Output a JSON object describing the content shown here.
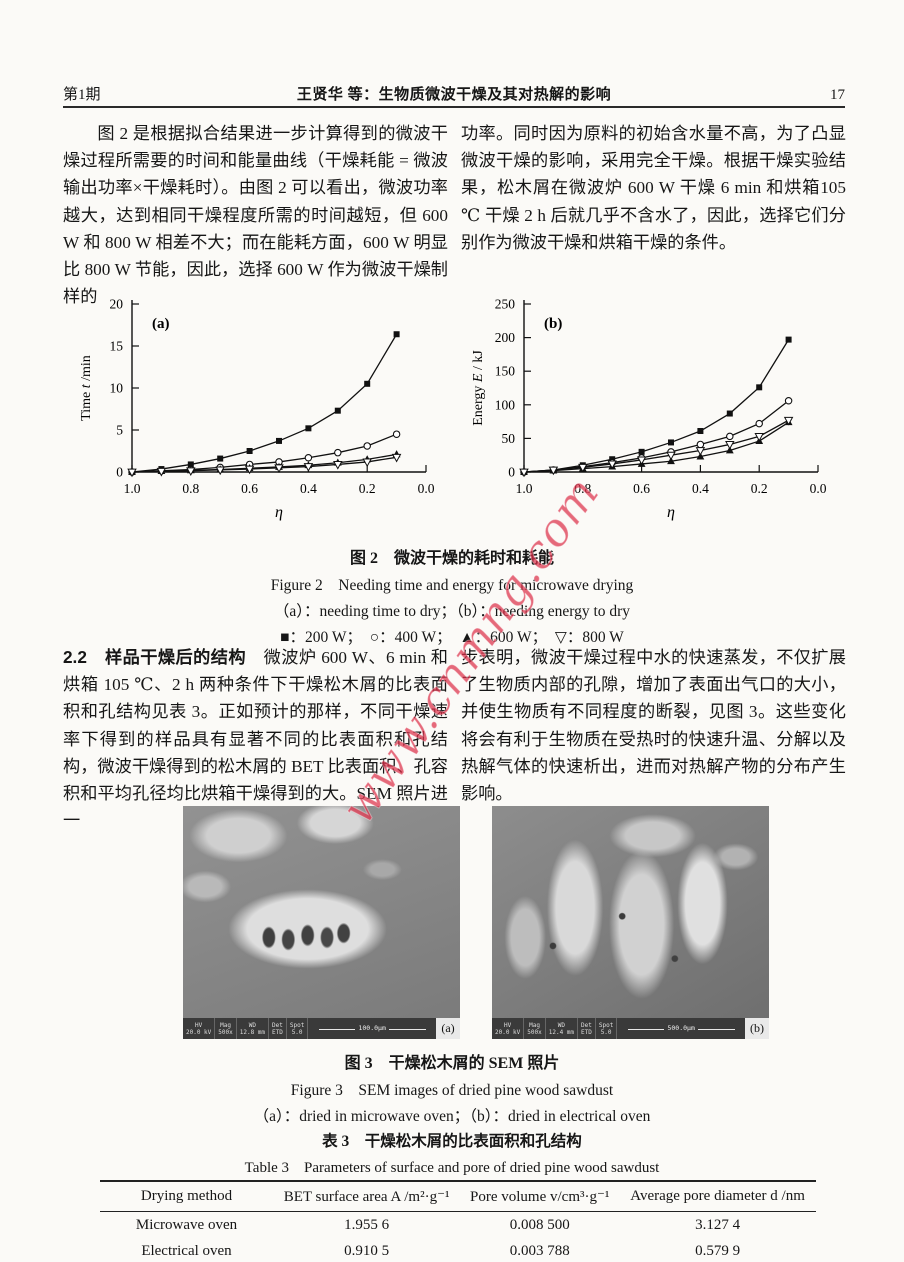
{
  "page": {
    "issue": "第1期",
    "header_title": "王贤华 等：生物质微波干燥及其对热解的影响",
    "page_number": "17"
  },
  "watermark": "www.cnmng.com",
  "intro": {
    "left": "图 2 是根据拟合结果进一步计算得到的微波干燥过程所需要的时间和能量曲线（干燥耗能 = 微波输出功率×干燥耗时）。由图 2 可以看出，微波功率越大，达到相同干燥程度所需的时间越短，但 600 W 和 800 W 相差不大；而在能耗方面，600 W 明显比 800 W 节能，因此，选择 600 W 作为微波干燥制样的",
    "right": "功率。同时因为原料的初始含水量不高，为了凸显微波干燥的影响，采用完全干燥。根据干燥实验结果，松木屑在微波炉 600 W 干燥 6 min 和烘箱105 ℃ 干燥 2 h 后就几乎不含水了，因此，选择它们分别作为微波干燥和烘箱干燥的条件。"
  },
  "figure2": {
    "caption_zh": "图 2　微波干燥的耗时和耗能",
    "caption_en": "Figure 2　Needing time and energy for microwave drying",
    "caption_sub": "（a）：needing time to dry；（b）：needing energy to dry",
    "legend": "■：200 W；　○：400 W；　▲：600 W；　▽：800 W"
  },
  "section22": {
    "heading": "2.2　样品干燥后的结构　",
    "left": "微波炉 600 W、6 min 和烘箱 105 ℃、2 h 两种条件下干燥松木屑的比表面积和孔结构见表 3。正如预计的那样，不同干燥速率下得到的样品具有显著不同的比表面积和孔结构，微波干燥得到的松木屑的 BET 比表面积、孔容积和平均孔径均比烘箱干燥得到的大。SEM 照片进一",
    "right": "步表明，微波干燥过程中水的快速蒸发，不仅扩展了生物质内部的孔隙，增加了表面出气口的大小，并使生物质有不同程度的断裂，见图 3。这些变化将会有利于生物质在受热时的快速升温、分解以及热解气体的快速析出，进而对热解产物的分布产生影响。"
  },
  "sem": {
    "a": {
      "columns": [
        [
          "HV",
          "20.0 kV"
        ],
        [
          "Mag",
          "500x"
        ],
        [
          "WD",
          "12.8 mm"
        ],
        [
          "Det",
          "ETD"
        ],
        [
          "Spot",
          "5.0"
        ]
      ],
      "scale": "100.0µm",
      "label": "(a)"
    },
    "b": {
      "columns": [
        [
          "HV",
          "20.0 kV"
        ],
        [
          "Mag",
          "500x"
        ],
        [
          "WD",
          "12.4 mm"
        ],
        [
          "Det",
          "ETD"
        ],
        [
          "Spot",
          "5.0"
        ]
      ],
      "scale": "500.0µm",
      "label": "(b)"
    }
  },
  "figure3": {
    "caption_zh": "图 3　干燥松木屑的 SEM 照片",
    "caption_en": "Figure 3　SEM images of dried pine wood sawdust",
    "caption_sub": "（a）：dried in microwave oven；（b）：dried in electrical oven"
  },
  "table3": {
    "caption_zh": "表 3　干燥松木屑的比表面积和孔结构",
    "caption_en": "Table 3　Parameters of surface and pore of dried pine wood sawdust",
    "headers": [
      "Drying method",
      "BET surface area A /m²·g⁻¹",
      "Pore volume v/cm³·g⁻¹",
      "Average pore diameter d /nm"
    ],
    "rows": [
      [
        "Microwave oven",
        "1.955 6",
        "0.008 500",
        "3.127 4"
      ],
      [
        "Electrical oven",
        "0.910 5",
        "0.003 788",
        "0.579 9"
      ]
    ]
  },
  "chart_data": [
    {
      "type": "line",
      "panel_label": "(a)",
      "xlabel": "η",
      "ylabel_name": "Time",
      "ylabel_sym": "t",
      "ylabel_unit": " /min",
      "x": [
        1.0,
        0.9,
        0.8,
        0.7,
        0.6,
        0.5,
        0.4,
        0.3,
        0.2,
        0.1
      ],
      "xlim": [
        1.0,
        0.0
      ],
      "x_ticks": [
        1.0,
        0.8,
        0.6,
        0.4,
        0.2,
        0.0
      ],
      "ylim": [
        0,
        20
      ],
      "y_ticks": [
        0,
        5,
        10,
        15,
        20
      ],
      "grid": false,
      "series": [
        {
          "name": "200 W",
          "marker": "filled-square",
          "values": [
            0,
            0.35,
            0.9,
            1.6,
            2.5,
            3.7,
            5.2,
            7.3,
            10.5,
            16.4
          ]
        },
        {
          "name": "400 W",
          "marker": "open-circle",
          "values": [
            0,
            0.15,
            0.3,
            0.55,
            0.9,
            1.2,
            1.7,
            2.3,
            3.1,
            4.5
          ]
        },
        {
          "name": "600 W",
          "marker": "filled-triangle",
          "values": [
            0,
            0.1,
            0.2,
            0.3,
            0.45,
            0.6,
            0.8,
            1.1,
            1.5,
            2.1
          ]
        },
        {
          "name": "800 W",
          "marker": "open-triangle-down",
          "values": [
            0,
            0.08,
            0.15,
            0.25,
            0.35,
            0.5,
            0.65,
            0.9,
            1.2,
            1.75
          ]
        }
      ]
    },
    {
      "type": "line",
      "panel_label": "(b)",
      "xlabel": "η",
      "ylabel_name": "Energy",
      "ylabel_sym": "E",
      "ylabel_unit": " / kJ",
      "x": [
        1.0,
        0.9,
        0.8,
        0.7,
        0.6,
        0.5,
        0.4,
        0.3,
        0.2,
        0.1
      ],
      "xlim": [
        1.0,
        0.0
      ],
      "x_ticks": [
        1.0,
        0.8,
        0.6,
        0.4,
        0.2,
        0.0
      ],
      "ylim": [
        0,
        250
      ],
      "y_ticks": [
        0,
        50,
        100,
        150,
        200,
        250
      ],
      "grid": false,
      "series": [
        {
          "name": "200 W",
          "marker": "filled-square",
          "values": [
            0,
            3,
            10,
            19,
            30,
            44,
            61,
            87,
            126,
            197
          ]
        },
        {
          "name": "400 W",
          "marker": "open-circle",
          "values": [
            0,
            3,
            8,
            14,
            21,
            30,
            41,
            53,
            72,
            106
          ]
        },
        {
          "name": "600 W",
          "marker": "filled-triangle",
          "values": [
            0,
            2,
            5,
            8,
            12,
            16,
            23,
            32,
            46,
            74
          ]
        },
        {
          "name": "800 W",
          "marker": "open-triangle-down",
          "values": [
            0,
            3,
            7,
            12,
            18,
            25,
            32,
            41,
            53,
            77
          ]
        }
      ]
    }
  ]
}
